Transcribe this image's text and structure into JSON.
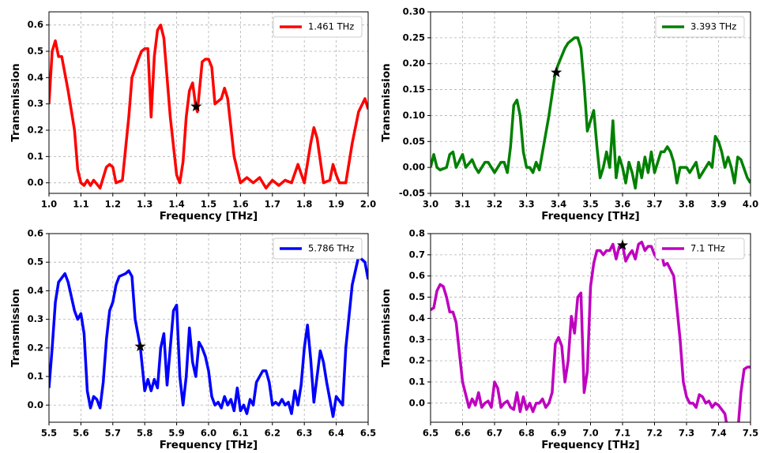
{
  "chart_data": [
    {
      "type": "line",
      "xlabel": "Frequency [THz]",
      "ylabel": "Transmission",
      "x": [
        1.0,
        1.01,
        1.02,
        1.03,
        1.04,
        1.06,
        1.08,
        1.09,
        1.1,
        1.11,
        1.12,
        1.13,
        1.14,
        1.16,
        1.18,
        1.19,
        1.2,
        1.21,
        1.23,
        1.25,
        1.26,
        1.28,
        1.29,
        1.3,
        1.31,
        1.32,
        1.33,
        1.34,
        1.35,
        1.36,
        1.38,
        1.4,
        1.41,
        1.42,
        1.43,
        1.44,
        1.45,
        1.46,
        1.465,
        1.48,
        1.49,
        1.5,
        1.51,
        1.52,
        1.54,
        1.55,
        1.56,
        1.58,
        1.6,
        1.62,
        1.64,
        1.66,
        1.68,
        1.7,
        1.72,
        1.74,
        1.76,
        1.78,
        1.8,
        1.82,
        1.83,
        1.84,
        1.86,
        1.88,
        1.89,
        1.9,
        1.91,
        1.93,
        1.95,
        1.97,
        1.99,
        2.0
      ],
      "series": [
        {
          "name": "1.461 THz",
          "color": "#ff0000",
          "values": [
            0.3,
            0.5,
            0.54,
            0.48,
            0.48,
            0.35,
            0.2,
            0.05,
            0.0,
            -0.01,
            0.01,
            -0.01,
            0.01,
            -0.02,
            0.06,
            0.07,
            0.06,
            0.0,
            0.01,
            0.25,
            0.4,
            0.47,
            0.5,
            0.51,
            0.51,
            0.25,
            0.48,
            0.58,
            0.6,
            0.55,
            0.25,
            0.03,
            0.0,
            0.08,
            0.25,
            0.35,
            0.38,
            0.29,
            0.27,
            0.46,
            0.47,
            0.47,
            0.44,
            0.3,
            0.32,
            0.36,
            0.32,
            0.1,
            0.0,
            0.02,
            0.0,
            0.02,
            -0.02,
            0.01,
            -0.01,
            0.01,
            0.0,
            0.07,
            0.0,
            0.15,
            0.21,
            0.17,
            0.0,
            0.01,
            0.07,
            0.03,
            0.0,
            0.0,
            0.15,
            0.27,
            0.32,
            0.28
          ]
        }
      ],
      "star": {
        "x": 1.461,
        "y": 0.29
      },
      "xlim": [
        1.0,
        2.0
      ],
      "ylim": [
        -0.04,
        0.65
      ],
      "xticks": [
        {
          "value": 1.0,
          "label": "1.0"
        },
        1.1,
        1.2,
        1.3,
        1.4,
        1.5,
        1.6,
        1.7,
        1.8,
        1.9,
        {
          "value": 2.0,
          "label": "2.0"
        }
      ],
      "yticks": [
        {
          "value": 0,
          "label": "0.0"
        },
        0.1,
        0.2,
        0.3,
        0.4,
        0.5,
        0.6
      ],
      "grid": true,
      "legend": "upper right"
    },
    {
      "type": "line",
      "xlabel": "Frequency [THz]",
      "ylabel": "Transmission",
      "x": [
        3.0,
        3.01,
        3.02,
        3.03,
        3.05,
        3.06,
        3.07,
        3.08,
        3.1,
        3.11,
        3.13,
        3.14,
        3.15,
        3.17,
        3.18,
        3.19,
        3.2,
        3.22,
        3.23,
        3.24,
        3.25,
        3.26,
        3.27,
        3.28,
        3.29,
        3.3,
        3.31,
        3.32,
        3.33,
        3.34,
        3.35,
        3.37,
        3.39,
        3.4,
        3.42,
        3.43,
        3.45,
        3.46,
        3.47,
        3.48,
        3.49,
        3.5,
        3.51,
        3.52,
        3.53,
        3.54,
        3.55,
        3.56,
        3.57,
        3.58,
        3.59,
        3.6,
        3.61,
        3.62,
        3.63,
        3.64,
        3.65,
        3.66,
        3.67,
        3.68,
        3.69,
        3.7,
        3.72,
        3.73,
        3.74,
        3.75,
        3.76,
        3.77,
        3.78,
        3.8,
        3.81,
        3.83,
        3.84,
        3.86,
        3.87,
        3.88,
        3.89,
        3.9,
        3.91,
        3.92,
        3.93,
        3.94,
        3.95,
        3.96,
        3.97,
        3.99,
        4.0
      ],
      "series": [
        {
          "name": "3.393 THz",
          "color": "#008000",
          "values": [
            0.0,
            0.025,
            0.0,
            -0.005,
            0.0,
            0.025,
            0.03,
            0.0,
            0.025,
            0.0,
            0.015,
            0.0,
            -0.01,
            0.01,
            0.01,
            0.0,
            -0.01,
            0.01,
            0.01,
            -0.01,
            0.04,
            0.12,
            0.13,
            0.1,
            0.03,
            0.0,
            0.0,
            -0.01,
            0.01,
            -0.005,
            0.03,
            0.1,
            0.183,
            0.2,
            0.23,
            0.24,
            0.25,
            0.25,
            0.23,
            0.16,
            0.07,
            0.09,
            0.11,
            0.04,
            -0.02,
            0.0,
            0.03,
            0.0,
            0.09,
            -0.02,
            0.02,
            0.0,
            -0.03,
            0.01,
            -0.01,
            -0.04,
            0.01,
            -0.02,
            0.02,
            -0.01,
            0.03,
            -0.01,
            0.03,
            0.03,
            0.04,
            0.03,
            0.01,
            -0.03,
            0.0,
            0.0,
            -0.01,
            0.01,
            -0.02,
            0.0,
            0.01,
            0.0,
            0.06,
            0.05,
            0.03,
            0.0,
            0.02,
            0.0,
            -0.03,
            0.02,
            0.015,
            -0.02,
            -0.03
          ]
        }
      ],
      "star": {
        "x": 3.393,
        "y": 0.183
      },
      "xlim": [
        3.0,
        4.0
      ],
      "ylim": [
        -0.05,
        0.3
      ],
      "xticks": [
        {
          "value": 3.0,
          "label": "3.0"
        },
        3.1,
        3.2,
        3.3,
        3.4,
        3.5,
        3.6,
        3.7,
        3.8,
        3.9,
        {
          "value": 4.0,
          "label": "4.0"
        }
      ],
      "yticks": [
        -0.05,
        {
          "value": 0,
          "label": "0.00"
        },
        0.05,
        {
          "value": 0.1,
          "label": "0.10"
        },
        0.15,
        {
          "value": 0.2,
          "label": "0.20"
        },
        0.25,
        {
          "value": 0.3,
          "label": "0.30"
        }
      ],
      "grid": true,
      "legend": "upper right"
    },
    {
      "type": "line",
      "xlabel": "Frequency [THz]",
      "ylabel": "Transmission",
      "x": [
        5.5,
        5.51,
        5.52,
        5.53,
        5.55,
        5.56,
        5.57,
        5.58,
        5.59,
        5.6,
        5.61,
        5.62,
        5.63,
        5.64,
        5.65,
        5.66,
        5.67,
        5.68,
        5.69,
        5.7,
        5.71,
        5.72,
        5.74,
        5.75,
        5.76,
        5.77,
        5.786,
        5.8,
        5.81,
        5.82,
        5.83,
        5.84,
        5.85,
        5.86,
        5.87,
        5.88,
        5.89,
        5.9,
        5.91,
        5.92,
        5.93,
        5.94,
        5.95,
        5.96,
        5.97,
        5.98,
        5.99,
        6.0,
        6.01,
        6.02,
        6.03,
        6.04,
        6.05,
        6.06,
        6.07,
        6.08,
        6.09,
        6.1,
        6.11,
        6.12,
        6.13,
        6.14,
        6.15,
        6.16,
        6.17,
        6.18,
        6.19,
        6.2,
        6.21,
        6.22,
        6.23,
        6.24,
        6.25,
        6.26,
        6.27,
        6.28,
        6.29,
        6.3,
        6.31,
        6.32,
        6.33,
        6.34,
        6.35,
        6.36,
        6.37,
        6.38,
        6.39,
        6.4,
        6.42,
        6.43,
        6.45,
        6.47,
        6.49,
        6.5
      ],
      "series": [
        {
          "name": "5.786 THz",
          "color": "#0000ff",
          "values": [
            0.06,
            0.2,
            0.36,
            0.43,
            0.46,
            0.43,
            0.38,
            0.33,
            0.3,
            0.32,
            0.25,
            0.05,
            -0.01,
            0.03,
            0.02,
            -0.01,
            0.08,
            0.23,
            0.33,
            0.36,
            0.42,
            0.45,
            0.46,
            0.47,
            0.45,
            0.3,
            0.205,
            0.05,
            0.09,
            0.05,
            0.09,
            0.06,
            0.2,
            0.25,
            0.07,
            0.2,
            0.33,
            0.35,
            0.1,
            0.0,
            0.1,
            0.27,
            0.15,
            0.1,
            0.22,
            0.2,
            0.17,
            0.12,
            0.03,
            0.0,
            0.01,
            -0.01,
            0.03,
            0.0,
            0.02,
            -0.02,
            0.06,
            -0.02,
            0.0,
            -0.03,
            0.02,
            0.0,
            0.08,
            0.1,
            0.12,
            0.12,
            0.08,
            0.0,
            0.01,
            0.0,
            0.02,
            0.0,
            0.01,
            -0.03,
            0.05,
            0.0,
            0.07,
            0.2,
            0.28,
            0.16,
            0.01,
            0.1,
            0.19,
            0.15,
            0.08,
            0.02,
            -0.04,
            0.03,
            0.0,
            0.2,
            0.42,
            0.52,
            0.5,
            0.44
          ]
        }
      ],
      "star": {
        "x": 5.786,
        "y": 0.205
      },
      "xlim": [
        5.5,
        6.5
      ],
      "ylim": [
        -0.06,
        0.6
      ],
      "xticks": [
        5.5,
        5.6,
        5.7,
        5.8,
        5.9,
        {
          "value": 6.0,
          "label": "6.0"
        },
        6.1,
        6.2,
        6.3,
        6.4,
        6.5
      ],
      "yticks": [
        {
          "value": 0,
          "label": "0.0"
        },
        0.1,
        0.2,
        0.3,
        0.4,
        0.5,
        0.6
      ],
      "grid": true,
      "legend": "upper right"
    },
    {
      "type": "line",
      "xlabel": "Frequency [THz]",
      "ylabel": "Transmission",
      "x": [
        6.5,
        6.51,
        6.52,
        6.53,
        6.54,
        6.55,
        6.56,
        6.57,
        6.58,
        6.59,
        6.6,
        6.61,
        6.62,
        6.63,
        6.64,
        6.65,
        6.66,
        6.67,
        6.68,
        6.69,
        6.7,
        6.71,
        6.72,
        6.73,
        6.74,
        6.75,
        6.76,
        6.77,
        6.78,
        6.79,
        6.8,
        6.81,
        6.82,
        6.83,
        6.84,
        6.85,
        6.86,
        6.87,
        6.88,
        6.89,
        6.9,
        6.91,
        6.92,
        6.93,
        6.94,
        6.95,
        6.96,
        6.97,
        6.98,
        6.99,
        7.0,
        7.01,
        7.02,
        7.03,
        7.04,
        7.05,
        7.06,
        7.07,
        7.08,
        7.09,
        7.1,
        7.11,
        7.12,
        7.13,
        7.14,
        7.15,
        7.16,
        7.17,
        7.18,
        7.19,
        7.2,
        7.21,
        7.22,
        7.23,
        7.24,
        7.25,
        7.26,
        7.27,
        7.28,
        7.29,
        7.3,
        7.31,
        7.32,
        7.33,
        7.34,
        7.35,
        7.36,
        7.37,
        7.38,
        7.39,
        7.4,
        7.41,
        7.42,
        7.43,
        7.46,
        7.47,
        7.48,
        7.49,
        7.5
      ],
      "series": [
        {
          "name": "7.1 THz",
          "color": "#bf00bf",
          "values": [
            0.44,
            0.45,
            0.53,
            0.56,
            0.55,
            0.5,
            0.43,
            0.43,
            0.38,
            0.24,
            0.1,
            0.04,
            -0.02,
            0.02,
            -0.01,
            0.05,
            -0.02,
            0.0,
            0.01,
            -0.02,
            0.1,
            0.07,
            -0.02,
            0.0,
            0.01,
            -0.02,
            -0.03,
            0.05,
            -0.04,
            0.03,
            -0.03,
            0.0,
            -0.04,
            0.0,
            0.0,
            0.02,
            -0.02,
            0.0,
            0.05,
            0.28,
            0.31,
            0.27,
            0.1,
            0.2,
            0.41,
            0.33,
            0.5,
            0.52,
            0.05,
            0.15,
            0.55,
            0.66,
            0.72,
            0.72,
            0.7,
            0.72,
            0.72,
            0.75,
            0.68,
            0.74,
            0.745,
            0.67,
            0.7,
            0.72,
            0.68,
            0.75,
            0.76,
            0.72,
            0.74,
            0.74,
            0.7,
            0.68,
            0.72,
            0.65,
            0.66,
            0.63,
            0.6,
            0.45,
            0.3,
            0.1,
            0.03,
            0.0,
            0.0,
            -0.02,
            0.04,
            0.03,
            0.0,
            0.01,
            -0.02,
            0.0,
            -0.01,
            -0.03,
            -0.05,
            -0.14,
            -0.14,
            0.05,
            0.16,
            0.17,
            0.17
          ]
        }
      ],
      "star": {
        "x": 7.1,
        "y": 0.745
      },
      "xlim": [
        6.5,
        7.5
      ],
      "ylim": [
        -0.09,
        0.8
      ],
      "xticks": [
        6.5,
        6.6,
        6.7,
        6.8,
        6.9,
        {
          "value": 7.0,
          "label": "7.0"
        },
        7.1,
        7.2,
        7.3,
        7.4,
        7.5
      ],
      "yticks": [
        {
          "value": 0,
          "label": "0.0"
        },
        0.1,
        0.2,
        0.3,
        0.4,
        0.5,
        0.6,
        0.7,
        0.8
      ],
      "grid": true,
      "legend": "upper right"
    }
  ]
}
